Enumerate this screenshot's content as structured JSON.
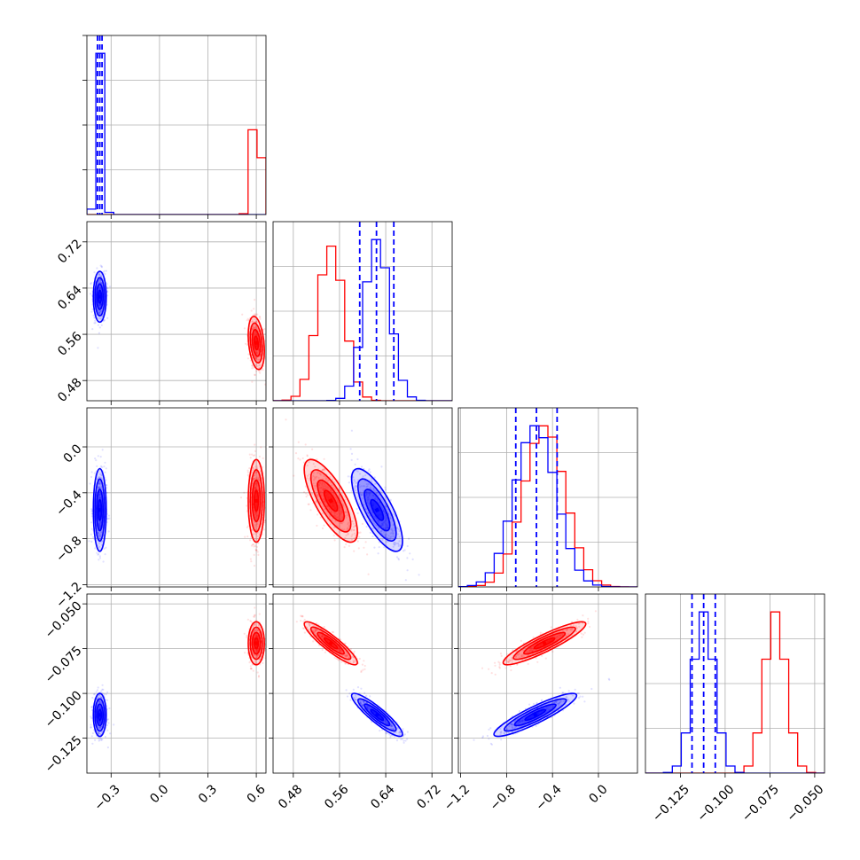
{
  "colors": {
    "red": "#ff0000",
    "blue": "#0000ff",
    "grid": "#b0b0b0",
    "axis": "#000000"
  },
  "chart_data": {
    "type": "corner",
    "grid": true,
    "n_parameters": 4,
    "parameter_ranges": [
      [
        -0.45,
        0.66
      ],
      [
        0.445,
        0.755
      ],
      [
        -1.22,
        0.34
      ],
      [
        -0.1445,
        -0.0445
      ]
    ],
    "tick_values": [
      [
        -0.3,
        0.0,
        0.3,
        0.6
      ],
      [
        0.48,
        0.56,
        0.64,
        0.72
      ],
      [
        -1.2,
        -0.8,
        -0.4,
        0.0
      ],
      [
        -0.125,
        -0.1,
        -0.075,
        -0.05
      ]
    ],
    "tick_labels": [
      [
        "−0.3",
        "0.0",
        "0.3",
        "0.6"
      ],
      [
        "0.48",
        "0.56",
        "0.64",
        "0.72"
      ],
      [
        "−1.2",
        "−0.8",
        "−0.4",
        "0.0"
      ],
      [
        "−0.125",
        "−0.100",
        "−0.075",
        "−0.050"
      ]
    ],
    "series": [
      {
        "color": "red",
        "means": [
          0.6,
          0.545,
          -0.47,
          -0.072
        ],
        "stds": [
          0.025,
          0.023,
          0.18,
          0.006
        ],
        "correlations": {
          "1-0": -0.3,
          "2-0": 0.0,
          "2-1": -0.75,
          "3-0": 0.0,
          "3-1": -0.9,
          "3-2": 0.9
        }
      },
      {
        "color": "blue",
        "means": [
          -0.37,
          0.625,
          -0.55,
          -0.112
        ],
        "stds": [
          0.02,
          0.022,
          0.18,
          0.006
        ],
        "quantiles": [
          [
            -0.384,
            -0.37,
            -0.356
          ],
          [
            0.595,
            0.624,
            0.654
          ],
          [
            -0.72,
            -0.54,
            -0.36
          ],
          [
            -0.1185,
            -0.112,
            -0.1055
          ]
        ],
        "correlations": {
          "1-0": 0.0,
          "2-0": 0.0,
          "2-1": -0.75,
          "3-0": 0.0,
          "3-1": -0.9,
          "3-2": 0.9
        }
      }
    ]
  }
}
